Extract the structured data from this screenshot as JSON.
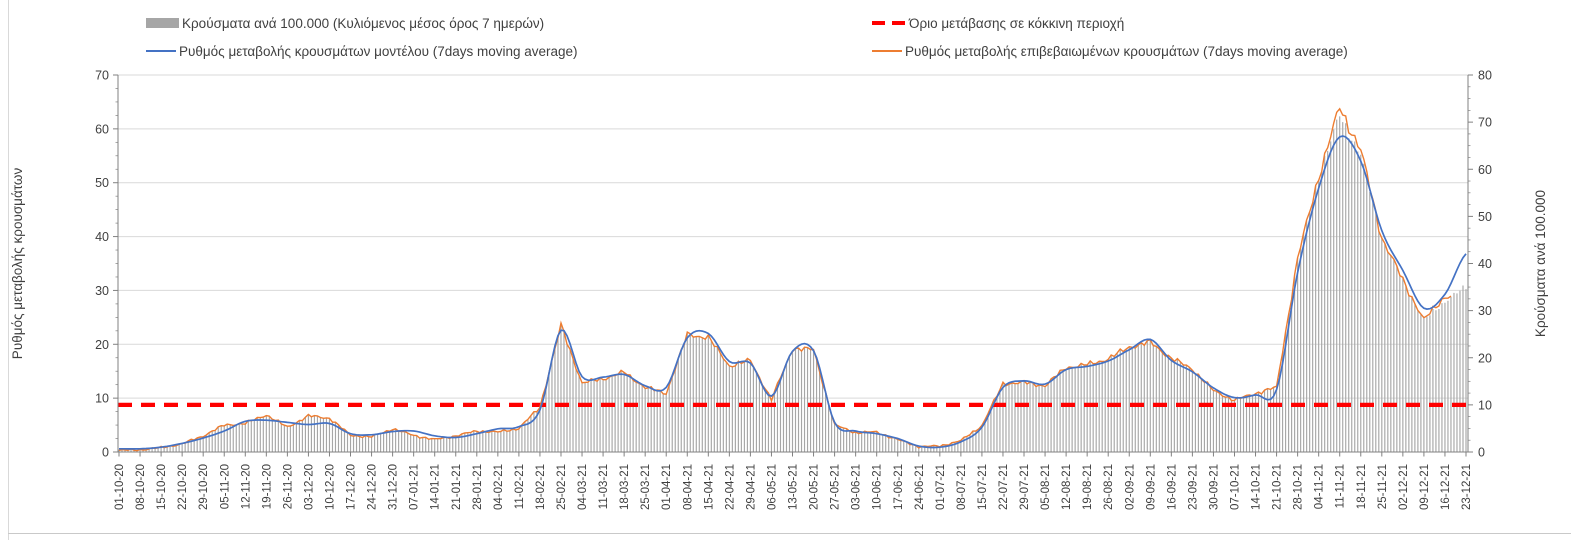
{
  "colors": {
    "bars": "#A6A6A6",
    "model_line": "#4472C4",
    "confirmed_line": "#ED7D31",
    "threshold": "#FF0000",
    "grid": "#D9D9D9",
    "axis": "#808080",
    "text": "#404040",
    "tick_text": "#3F3F3F"
  },
  "legend": {
    "items": [
      {
        "id": "bars",
        "label": "Κρούσματα ανά 100.000 (Κυλιόμενος μέσος όρος 7 ημερών)",
        "marker": "bar",
        "color": "#A6A6A6"
      },
      {
        "id": "threshold",
        "label": "Όριο μετάβασης σε κόκκινη περιοχή",
        "marker": "dash",
        "color": "#FF0000"
      },
      {
        "id": "model",
        "label": "Ρυθμός μεταβολής κρουσμάτων μοντέλου (7days moving average)",
        "marker": "line",
        "color": "#4472C4"
      },
      {
        "id": "confirmed",
        "label": "Ρυθμός μεταβολής επιβεβαιωμένων κρουσμάτων (7days moving average)",
        "marker": "line",
        "color": "#ED7D31"
      }
    ]
  },
  "chart_data": {
    "type": "composite",
    "subtype": "daily bars + two 7-day moving-average lines + horizontal threshold",
    "left_axis": {
      "title": "Ρυθμός μεταβολής κρουσμάτων",
      "min": 0,
      "max": 70,
      "tick_step": 10,
      "ticks": [
        0,
        10,
        20,
        30,
        40,
        50,
        60,
        70
      ]
    },
    "right_axis": {
      "title": "Κρούσματα ανά 100.000",
      "min": 0,
      "max": 80,
      "tick_step": 10,
      "ticks": [
        0,
        10,
        20,
        30,
        40,
        50,
        60,
        70,
        80
      ]
    },
    "grid": "horizontal, left-axis ticks",
    "legend_position": "top",
    "threshold": {
      "name": "Όριο μετάβασης σε κόκκινη περιοχή",
      "axis": "right",
      "value": 10,
      "color": "#FF0000",
      "style": "dashed"
    },
    "x_tick_labels": [
      "01-10-20",
      "08-10-20",
      "15-10-20",
      "22-10-20",
      "29-10-20",
      "05-11-20",
      "12-11-20",
      "19-11-20",
      "26-11-20",
      "03-12-20",
      "10-12-20",
      "17-12-20",
      "24-12-20",
      "31-12-20",
      "07-01-21",
      "14-01-21",
      "21-01-21",
      "28-01-21",
      "04-02-21",
      "11-02-21",
      "18-02-21",
      "25-02-21",
      "04-03-21",
      "11-03-21",
      "18-03-21",
      "25-03-21",
      "01-04-21",
      "08-04-21",
      "15-04-21",
      "22-04-21",
      "29-04-21",
      "06-05-21",
      "13-05-21",
      "20-05-21",
      "27-05-21",
      "03-06-21",
      "10-06-21",
      "17-06-21",
      "24-06-21",
      "01-07-21",
      "08-07-21",
      "15-07-21",
      "22-07-21",
      "29-07-21",
      "05-08-21",
      "12-08-21",
      "19-08-21",
      "26-08-21",
      "02-09-21",
      "09-09-21",
      "16-09-21",
      "23-09-21",
      "30-09-21",
      "07-10-21",
      "14-10-21",
      "21-10-21",
      "28-10-21",
      "04-11-21",
      "11-11-21",
      "18-11-21",
      "25-11-21",
      "02-12-21",
      "09-12-21",
      "16-12-21",
      "23-12-21"
    ],
    "series": [
      {
        "name": "Κρούσματα ανά 100.000 (Κυλιόμενος μέσος όρος 7 ημερών)",
        "type": "bar",
        "axis": "right",
        "color": "#A6A6A6",
        "cadence": "daily (weekly samples listed)",
        "weekly_values": [
          0.5,
          0.6,
          1.0,
          1.8,
          3.4,
          5.7,
          6.1,
          7.9,
          5.3,
          7.7,
          7.2,
          3.5,
          3.2,
          4.9,
          3.5,
          2.6,
          3.4,
          4.5,
          4.2,
          5.0,
          9.5,
          26.9,
          14.6,
          15.5,
          16.9,
          13.7,
          12.5,
          24.9,
          24.3,
          18.3,
          19.4,
          11.1,
          21.9,
          21.7,
          5.7,
          4.1,
          4.2,
          2.6,
          1.1,
          1.3,
          2.4,
          5.6,
          14.5,
          14.7,
          14.1,
          17.9,
          18.5,
          19.8,
          22.3,
          23.3,
          19.9,
          17.6,
          13.0,
          11.0,
          12.5,
          13.7,
          41.0,
          58.5,
          71.5,
          63.0,
          45.5,
          36.5,
          28.0,
          32.0,
          35.0
        ]
      },
      {
        "name": "Ρυθμός μεταβολής κρουσμάτων μοντέλου (7days moving average)",
        "type": "line",
        "axis": "left",
        "color": "#4472C4",
        "style": "smooth",
        "weekly_values": [
          0.6,
          0.6,
          0.9,
          1.6,
          2.6,
          3.9,
          5.7,
          5.9,
          5.5,
          5.1,
          5.3,
          3.4,
          3.2,
          3.8,
          3.9,
          3.0,
          2.7,
          3.4,
          4.3,
          4.7,
          7.8,
          22.6,
          14.0,
          13.9,
          14.4,
          12.3,
          12.0,
          21.2,
          22.0,
          16.8,
          16.5,
          10.4,
          18.7,
          18.8,
          5.5,
          3.9,
          3.4,
          2.5,
          1.1,
          0.9,
          1.9,
          4.6,
          12.0,
          13.2,
          12.6,
          15.3,
          15.9,
          16.9,
          19.0,
          20.9,
          17.0,
          14.9,
          11.9,
          10.1,
          10.6,
          11.6,
          33.3,
          49.0,
          58.5,
          54.0,
          41.1,
          33.7,
          26.7,
          29.3,
          36.8
        ]
      },
      {
        "name": "Ρυθμός μεταβολής επιβεβαιωμένων κρουσμάτων (7days moving average)",
        "type": "line",
        "axis": "left",
        "color": "#ED7D31",
        "style": "jagged",
        "ends_early_days": 5,
        "weekly_values": [
          0.3,
          0.4,
          0.8,
          1.5,
          3.0,
          5.0,
          5.3,
          6.9,
          4.6,
          6.7,
          6.3,
          3.1,
          2.8,
          4.3,
          3.1,
          2.3,
          3.0,
          3.9,
          3.7,
          4.4,
          8.3,
          23.5,
          12.8,
          13.6,
          14.8,
          12.0,
          10.9,
          21.8,
          21.3,
          16.0,
          17.0,
          9.7,
          19.2,
          19.0,
          5.0,
          3.6,
          3.7,
          2.3,
          1.0,
          1.1,
          2.1,
          4.9,
          12.7,
          12.9,
          12.3,
          15.7,
          16.2,
          17.3,
          19.5,
          20.4,
          17.4,
          15.4,
          11.4,
          9.6,
          10.9,
          12.0,
          35.9,
          51.2,
          64.0,
          56.0,
          39.8,
          31.9,
          24.5,
          28.9,
          null
        ]
      }
    ],
    "render_hints": {
      "confirmed_jitter": [
        0.25,
        0.022
      ],
      "bar_jitter": [
        0.2,
        0.02
      ]
    }
  }
}
